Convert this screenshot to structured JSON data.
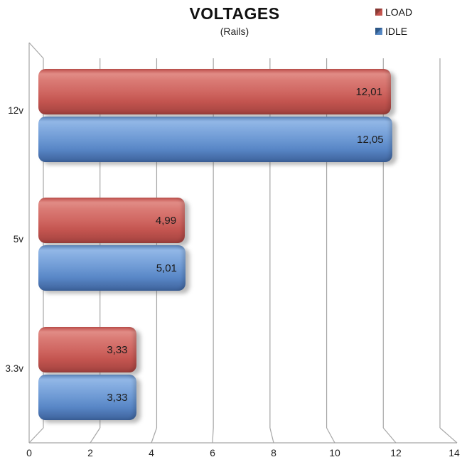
{
  "chart_data": {
    "type": "bar",
    "orientation": "horizontal",
    "effect_3d": true,
    "title": "VOLTAGES",
    "subtitle": "(Rails)",
    "categories": [
      "12v",
      "5v",
      "3.3v"
    ],
    "series": [
      {
        "name": "LOAD",
        "color": "#C0504D",
        "values": [
          12.01,
          4.99,
          3.33
        ],
        "value_labels": [
          "12,01",
          "4,99",
          "3,33"
        ]
      },
      {
        "name": "IDLE",
        "color": "#4F81BD",
        "values": [
          12.05,
          5.01,
          3.33
        ],
        "value_labels": [
          "12,05",
          "5,01",
          "3,33"
        ]
      }
    ],
    "xlabel": "",
    "ylabel": "",
    "xlim": [
      0,
      14
    ],
    "xticks": [
      0,
      2,
      4,
      6,
      8,
      10,
      12,
      14
    ],
    "xtick_labels": [
      "0",
      "2",
      "4",
      "6",
      "8",
      "10",
      "12",
      "14"
    ],
    "grid": true,
    "gridline_color": "#A6A6A6",
    "background_color": "#FFFFFF",
    "legend_position": "top-right",
    "value_label_position": "inside-end"
  }
}
